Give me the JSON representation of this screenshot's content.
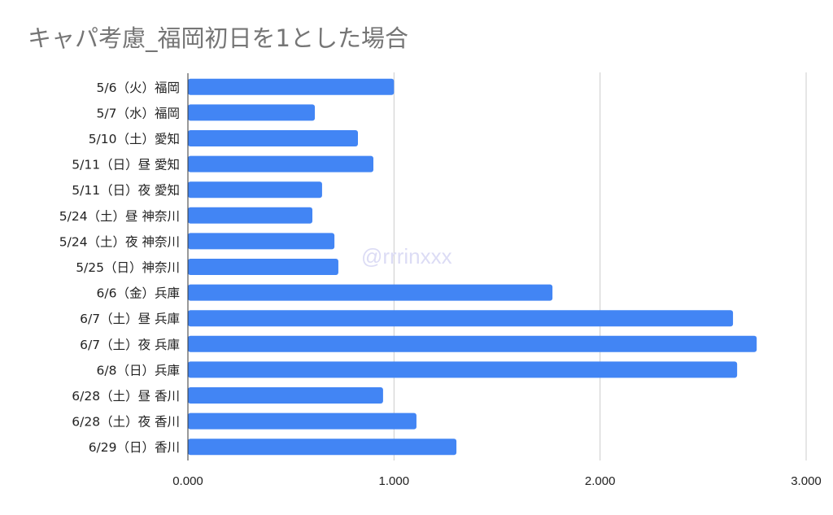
{
  "chart_data": {
    "type": "bar",
    "orientation": "horizontal",
    "title": "キャパ考慮_福岡初日を1とした場合",
    "xlabel": "",
    "ylabel": "",
    "xlim": [
      0,
      3
    ],
    "x_ticks": [
      "0.000",
      "1.000",
      "2.000",
      "3.000"
    ],
    "grid": true,
    "watermark": "@rrrinxxx",
    "color": "#4285f4",
    "categories": [
      "5/6（火）福岡",
      "5/7（水）福岡",
      "5/10（土）愛知",
      "5/11（日）昼 愛知",
      "5/11（日）夜 愛知",
      "5/24（土）昼 神奈川",
      "5/24（土）夜 神奈川",
      "5/25（日）神奈川",
      "6/6（金）兵庫",
      "6/7（土）昼 兵庫",
      "6/7（土）夜 兵庫",
      "6/8（日）兵庫",
      "6/28（土）昼 香川",
      "6/28（土）夜 香川",
      "6/29（日）香川"
    ],
    "values": [
      1.0,
      0.616,
      0.825,
      0.9,
      0.651,
      0.604,
      0.711,
      0.73,
      1.769,
      2.645,
      2.76,
      2.665,
      0.947,
      1.109,
      1.303
    ]
  }
}
